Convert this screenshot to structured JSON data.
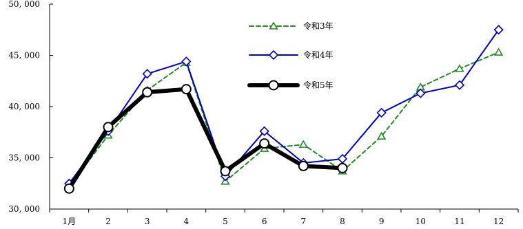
{
  "chart_data": {
    "type": "line",
    "title": "",
    "xlabel": "",
    "ylabel": "",
    "categories": [
      "1月",
      "2",
      "3",
      "4",
      "5",
      "6",
      "7",
      "8",
      "9",
      "10",
      "11",
      "12"
    ],
    "ylim": [
      30000,
      50000
    ],
    "yticks": [
      30000,
      35000,
      40000,
      45000,
      50000
    ],
    "ytick_labels": [
      "30, 000",
      "35, 000",
      "40, 000",
      "45, 000",
      "50, 000"
    ],
    "grid": false,
    "legend_position": "top-right",
    "series": [
      {
        "name": "令和3年",
        "color": "#228B22",
        "style": "dashed",
        "marker": "triangle",
        "values": [
          32200,
          37200,
          41600,
          44300,
          32700,
          35900,
          36300,
          33700,
          37100,
          41900,
          43700,
          45300
        ]
      },
      {
        "name": "令和4年",
        "color": "#0000CC",
        "style": "solid",
        "marker": "diamond",
        "values": [
          32500,
          37600,
          43200,
          44400,
          33200,
          37600,
          34500,
          34900,
          39400,
          41300,
          42100,
          47500
        ]
      },
      {
        "name": "令和5年",
        "color": "#000000",
        "style": "thick",
        "marker": "circle",
        "values": [
          32000,
          38000,
          41400,
          41700,
          33700,
          36400,
          34200,
          34000,
          null,
          null,
          null,
          null
        ]
      }
    ]
  }
}
